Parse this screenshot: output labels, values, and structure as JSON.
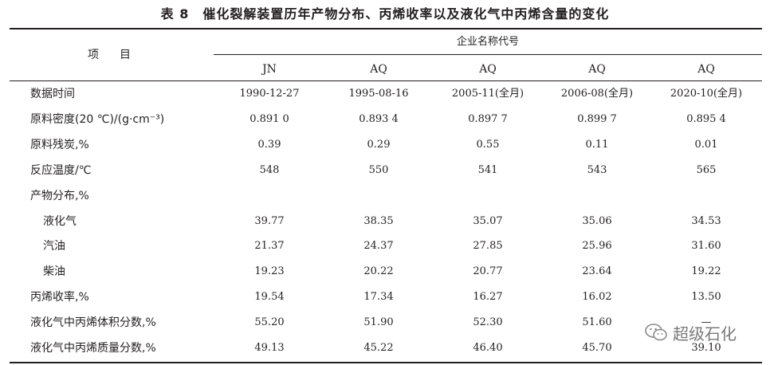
{
  "title": "表 8　催化裂解装置历年产物分布、丙烯收率以及液化气中丙烯含量的变化",
  "header": {
    "item_label": "项　目",
    "group_label": "企业名称代号",
    "columns": [
      "JN",
      "AQ",
      "AQ",
      "AQ",
      "AQ"
    ]
  },
  "rows": [
    {
      "label": "数据时间",
      "values": [
        "1990-12-27",
        "1995-08-16",
        "2005-11(全月)",
        "2006-08(全月)",
        "2020-10(全月)"
      ]
    },
    {
      "label": "原料密度(20 ℃)/(g·cm⁻³)",
      "values": [
        "0.891 0",
        "0.893 4",
        "0.897 7",
        "0.899 7",
        "0.895 4"
      ]
    },
    {
      "label": "原料残炭,%",
      "values": [
        "0.39",
        "0.29",
        "0.55",
        "0.11",
        "0.01"
      ]
    },
    {
      "label": "反应温度/℃",
      "values": [
        "548",
        "550",
        "541",
        "543",
        "565"
      ]
    },
    {
      "label": "产物分布,%",
      "values": [
        "",
        "",
        "",
        "",
        ""
      ]
    },
    {
      "label": "液化气",
      "indent": true,
      "values": [
        "39.77",
        "38.35",
        "35.07",
        "35.06",
        "34.53"
      ]
    },
    {
      "label": "汽油",
      "indent": true,
      "values": [
        "21.37",
        "24.37",
        "27.85",
        "25.96",
        "31.60"
      ]
    },
    {
      "label": "柴油",
      "indent": true,
      "values": [
        "19.23",
        "20.22",
        "20.77",
        "23.64",
        "19.22"
      ]
    },
    {
      "label": "丙烯收率,%",
      "values": [
        "19.54",
        "17.34",
        "16.27",
        "16.02",
        "13.50"
      ]
    },
    {
      "label": "液化气中丙烯体积分数,%",
      "values": [
        "55.20",
        "51.90",
        "52.30",
        "51.60",
        "—"
      ]
    },
    {
      "label": "液化气中丙烯质量分数,%",
      "values": [
        "49.13",
        "45.22",
        "46.40",
        "45.70",
        "39.10"
      ]
    }
  ],
  "watermark": {
    "text": "超级石化",
    "icon": "wechat-icon"
  }
}
